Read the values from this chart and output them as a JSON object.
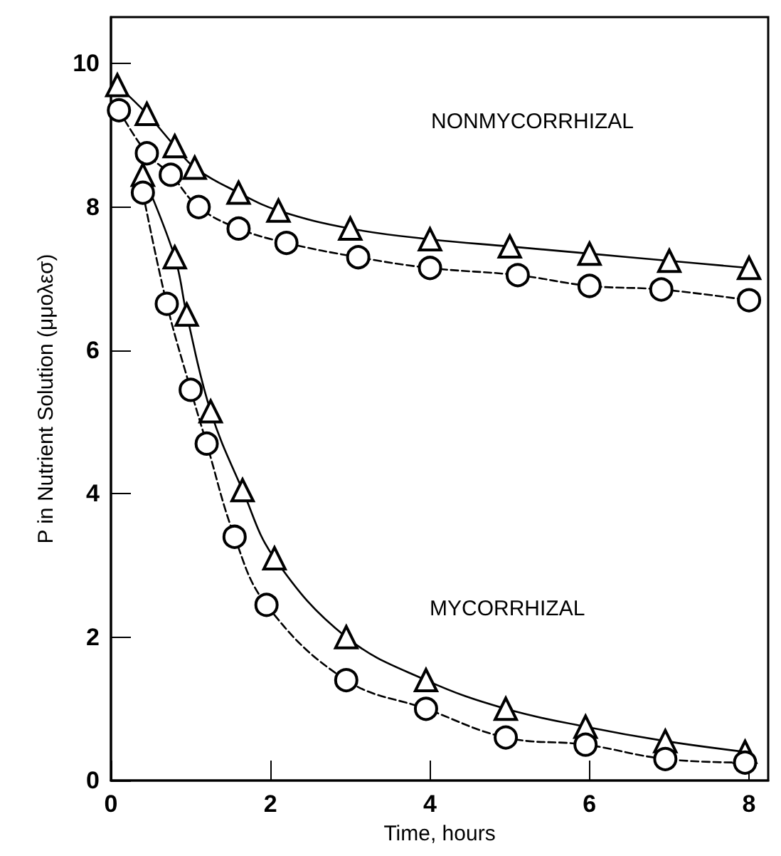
{
  "chart_data": {
    "type": "line",
    "xlabel": "Time, hours",
    "ylabel": "P in Nutrient Solution (μμολεσ)",
    "xlim": [
      0,
      8.24
    ],
    "xticks": [
      0,
      2,
      4,
      6,
      8
    ],
    "ylim": [
      0,
      10.65
    ],
    "yticks": [
      0,
      2,
      4,
      6,
      8,
      10
    ],
    "grid": false,
    "series": [
      {
        "color": "#000000",
        "marker": "triangle",
        "line_style": "solid",
        "x": [
          0.08,
          0.45,
          0.8,
          1.05,
          1.6,
          2.1,
          3.0,
          4.0,
          5.0,
          6.0,
          7.0,
          8.0
        ],
        "values": [
          9.7,
          9.3,
          8.85,
          8.55,
          8.2,
          7.95,
          7.7,
          7.55,
          7.45,
          7.35,
          7.25,
          7.15
        ]
      },
      {
        "color": "#000000",
        "marker": "circle",
        "line_style": "dashed",
        "x": [
          0.1,
          0.45,
          0.75,
          1.1,
          1.6,
          2.2,
          3.1,
          4.0,
          5.1,
          6.0,
          6.9,
          8.0
        ],
        "values": [
          9.35,
          8.75,
          8.45,
          8.0,
          7.7,
          7.5,
          7.3,
          7.15,
          7.05,
          6.9,
          6.85,
          6.7
        ]
      },
      {
        "color": "#000000",
        "marker": "triangle",
        "line_style": "solid",
        "x": [
          0.4,
          0.8,
          0.95,
          1.25,
          1.65,
          2.05,
          2.95,
          3.95,
          4.95,
          5.95,
          6.95,
          7.95
        ],
        "values": [
          8.45,
          7.3,
          6.5,
          5.15,
          4.05,
          3.1,
          2.0,
          1.4,
          1.0,
          0.75,
          0.55,
          0.4
        ]
      },
      {
        "color": "#000000",
        "marker": "circle",
        "line_style": "dashed",
        "x": [
          0.4,
          0.7,
          1.0,
          1.2,
          1.55,
          1.95,
          2.95,
          3.95,
          4.95,
          5.95,
          6.95,
          7.95
        ],
        "values": [
          8.2,
          6.65,
          5.45,
          4.7,
          3.4,
          2.45,
          1.4,
          1.0,
          0.6,
          0.5,
          0.3,
          0.25
        ]
      }
    ],
    "annotations": [
      "NONMYCORRHIZAL",
      "MYCORRHIZAL"
    ]
  }
}
